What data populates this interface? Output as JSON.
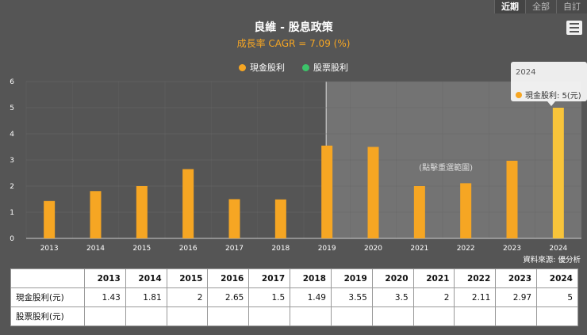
{
  "range_tabs": [
    {
      "label": "近期",
      "active": true
    },
    {
      "label": "全部",
      "active": false
    },
    {
      "label": "自訂",
      "active": false
    }
  ],
  "title": "良維 - 股息政策",
  "subtitle": "成長率 CAGR = 7.09 (%)",
  "legend": [
    {
      "label": "現金股利",
      "color": "#f6a623"
    },
    {
      "label": "股票股利",
      "color": "#3cc46a"
    }
  ],
  "selection_label": "(點擊重選範圍)",
  "tooltip": {
    "year": "2024",
    "text": "現金股利: 5(元)"
  },
  "source": "資料來源: 優分析",
  "chart_data": {
    "type": "bar",
    "title": "良維 - 股息政策",
    "subtitle": "成長率 CAGR = 7.09 (%)",
    "categories": [
      "2013",
      "2014",
      "2015",
      "2016",
      "2017",
      "2018",
      "2019",
      "2020",
      "2021",
      "2022",
      "2023",
      "2024"
    ],
    "series": [
      {
        "name": "現金股利",
        "values": [
          1.43,
          1.81,
          2,
          2.65,
          1.5,
          1.49,
          3.55,
          3.5,
          2,
          2.11,
          2.97,
          5
        ],
        "color": "#f6a623"
      },
      {
        "name": "股票股利",
        "values": [
          null,
          null,
          null,
          null,
          null,
          null,
          null,
          null,
          null,
          null,
          null,
          null
        ],
        "color": "#3cc46a"
      }
    ],
    "yticks": [
      "0",
      "1",
      "2",
      "3",
      "4",
      "5",
      "6"
    ],
    "ylim": [
      0,
      6
    ],
    "highlight_range": [
      "2019",
      "2024"
    ],
    "legend_position": "top-center"
  },
  "table": {
    "headers": [
      "",
      "2013",
      "2014",
      "2015",
      "2016",
      "2017",
      "2018",
      "2019",
      "2020",
      "2021",
      "2022",
      "2023",
      "2024"
    ],
    "rows": [
      {
        "label": "現金股利(元)",
        "cells": [
          "1.43",
          "1.81",
          "2",
          "2.65",
          "1.5",
          "1.49",
          "3.55",
          "3.5",
          "2",
          "2.11",
          "2.97",
          "5"
        ]
      },
      {
        "label": "股票股利(元)",
        "cells": [
          "",
          "",
          "",
          "",
          "",
          "",
          "",
          "",
          "",
          "",
          "",
          ""
        ]
      }
    ]
  }
}
